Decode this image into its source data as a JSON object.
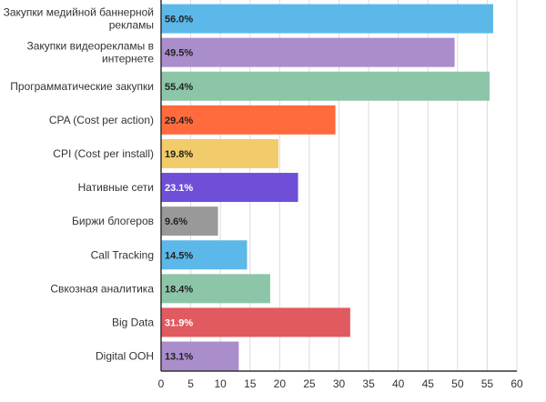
{
  "chart_data": {
    "type": "bar",
    "orientation": "horizontal",
    "categories": [
      "Закупки медийной баннерной рекламы",
      "Закупки видеорекламы в интернете",
      "Программатические закупки",
      "CPA (Cost per action)",
      "CPI (Cost per install)",
      "Нативные сети",
      "Биржи блогеров",
      "Call Tracking",
      "Свкозная аналитика",
      "Big Data",
      "Digital OOH"
    ],
    "values": [
      56.0,
      49.5,
      55.4,
      29.4,
      19.8,
      23.1,
      9.6,
      14.5,
      18.4,
      31.9,
      13.1
    ],
    "value_labels": [
      "56.0%",
      "49.5%",
      "55.4%",
      "29.4%",
      "19.8%",
      "23.1%",
      "9.6%",
      "14.5%",
      "18.4%",
      "31.9%",
      "13.1%"
    ],
    "colors": [
      "#5BB8E8",
      "#A98ECB",
      "#8DC5A8",
      "#FF6B3D",
      "#F2CC6B",
      "#6F4FD8",
      "#999999",
      "#5BB8E8",
      "#8DC5A8",
      "#E05A5F",
      "#A98ECB"
    ],
    "label_colors": [
      "#222222",
      "#222222",
      "#222222",
      "#222222",
      "#222222",
      "#ffffff",
      "#222222",
      "#222222",
      "#222222",
      "#ffffff",
      "#222222"
    ],
    "xlim": [
      0,
      60
    ],
    "x_ticks": [
      "0",
      "5",
      "10",
      "15",
      "20",
      "25",
      "30",
      "35",
      "40",
      "45",
      "50",
      "55",
      "60"
    ],
    "grid": true,
    "title": "",
    "xlabel": "",
    "ylabel": ""
  }
}
